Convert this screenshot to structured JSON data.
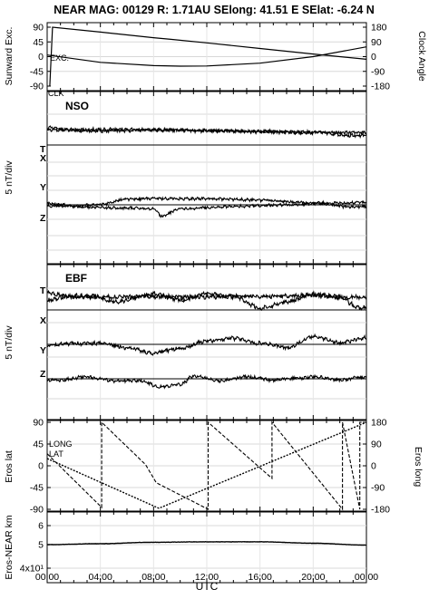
{
  "chart_data": [
    {
      "type": "line",
      "title": "NEAR MAG: 00129  R: 1.71AU  SElong:   41.51 E  SElat:   -6.24 N",
      "ylabel_left": "Sunward Exc.",
      "ylabel_right": "Clock Angle",
      "annotations": [
        "EXC.",
        "CLK"
      ],
      "ylim_left": [
        -90,
        90
      ],
      "ylim_right": [
        -180,
        180
      ],
      "yticks_left": [
        "90",
        "45",
        "0",
        "-45",
        "-90"
      ],
      "yticks_right": [
        "180",
        "90",
        "0",
        "-90",
        "-180"
      ],
      "series": [
        {
          "axis": "left",
          "x": [
            0.2,
            0.4,
            4,
            8,
            9.3,
            12,
            16,
            20,
            24
          ],
          "y": [
            -90,
            90,
            75,
            58,
            53,
            42,
            25,
            8,
            -8
          ]
        },
        {
          "axis": "right",
          "x": [
            0,
            4,
            8,
            10,
            12,
            16,
            20,
            24
          ],
          "y": [
            10,
            -35,
            -55,
            -58,
            -57,
            -40,
            0,
            60
          ]
        }
      ]
    },
    {
      "type": "line",
      "panel_label": "NSO",
      "ylabel": "5 nT/div",
      "series": [
        {
          "name": "T",
          "x": [
            0,
            2,
            4,
            8,
            12,
            16,
            20,
            23,
            24
          ],
          "y": [
            4.3,
            3.6,
            3.5,
            3.8,
            3.6,
            3.3,
            3.1,
            3.2,
            3.2
          ]
        },
        {
          "name": "X",
          "x": [
            0,
            4,
            8,
            12,
            16,
            20,
            23,
            24
          ],
          "y": [
            3.8,
            3.9,
            3.8,
            3.6,
            3.4,
            3.2,
            2.4,
            2.4
          ]
        },
        {
          "name": "Y",
          "x": [
            0,
            2,
            4,
            6,
            8,
            12,
            16,
            20,
            23,
            24
          ],
          "y": [
            -0.3,
            -0.3,
            0.1,
            1.4,
            1.6,
            1.5,
            1.2,
            0.5,
            -0.6,
            -0.4
          ]
        },
        {
          "name": "Z",
          "x": [
            0,
            3,
            6,
            8,
            8.6,
            10,
            14,
            18,
            22,
            24
          ],
          "y": [
            0.3,
            -0.6,
            -0.8,
            -1.0,
            -2.8,
            -1.0,
            -0.4,
            0.0,
            0.5,
            0.6
          ]
        }
      ]
    },
    {
      "type": "line",
      "panel_label": "EBF",
      "ylabel": "5 nT/div",
      "series": [
        {
          "name": "T",
          "x": [
            0,
            2,
            4,
            8,
            12,
            16,
            20,
            23,
            24
          ],
          "y": [
            4.2,
            3.2,
            3.2,
            3.3,
            3.3,
            3.4,
            3.6,
            3.2,
            3.2
          ]
        },
        {
          "name": "X",
          "x": [
            0,
            2,
            3.5,
            5,
            8,
            10,
            12,
            14,
            16,
            18,
            20,
            22,
            23.5,
            24
          ],
          "y": [
            2.4,
            3.5,
            3.5,
            2.0,
            4.0,
            2.5,
            4.0,
            3.5,
            0.5,
            2.0,
            4.0,
            3.0,
            0.5,
            0.8
          ]
        },
        {
          "name": "Y",
          "x": [
            0,
            2,
            4,
            6,
            8,
            10,
            12,
            14,
            16,
            18,
            20,
            22,
            24
          ],
          "y": [
            -0.3,
            0.2,
            0.3,
            -0.8,
            -2.2,
            -1.0,
            0.8,
            1.5,
            0.3,
            -0.8,
            1.9,
            0.4,
            1.7
          ]
        },
        {
          "name": "Z",
          "x": [
            0,
            1,
            3,
            5,
            7,
            8.5,
            10,
            11,
            13,
            15,
            17,
            19,
            20,
            22,
            24
          ],
          "y": [
            -0.4,
            -0.3,
            0.5,
            -0.5,
            -0.5,
            -2.0,
            -1.5,
            0.7,
            -0.5,
            0.5,
            -0.3,
            0.2,
            0.5,
            -0.3,
            0.5
          ]
        }
      ]
    },
    {
      "type": "line",
      "ylabel_left": "Eros lat",
      "ylabel_right": "Eros long",
      "annotations": [
        "LONG",
        "LAT"
      ],
      "ylim_left": [
        -90,
        90
      ],
      "ylim_right": [
        -180,
        180
      ],
      "yticks_left": [
        "90",
        "45",
        "0",
        "-45",
        "-90"
      ],
      "yticks_right": [
        "180",
        "90",
        "0",
        "-90",
        "-180"
      ],
      "series": [
        {
          "axis": "right",
          "x": [
            0,
            4.1,
            4.1,
            7.4,
            8.2,
            12.1,
            12.1,
            16.9,
            16.9,
            22.2,
            22.2,
            23.5,
            23.5,
            24
          ],
          "y": [
            50,
            -172,
            180,
            5,
            -70,
            -180,
            180,
            -52,
            180,
            -180,
            180,
            -180,
            180,
            180
          ]
        },
        {
          "axis": "left",
          "x": [
            0,
            8.4,
            24
          ],
          "y": [
            15,
            -88,
            90
          ]
        }
      ]
    },
    {
      "type": "line",
      "ylabel": "Eros-NEAR km",
      "xlabel": "UTC",
      "yticks": [
        "6",
        "5",
        "4x10¹"
      ],
      "xticks": [
        "00:00",
        "04:00",
        "08:00",
        "12:00",
        "16:00",
        "20:00",
        "00:00"
      ],
      "series": [
        {
          "x": [
            0,
            4,
            8,
            12,
            16,
            20,
            24
          ],
          "y": [
            50.0,
            50.4,
            51.0,
            51.2,
            51.2,
            50.6,
            49.8
          ]
        }
      ]
    }
  ]
}
